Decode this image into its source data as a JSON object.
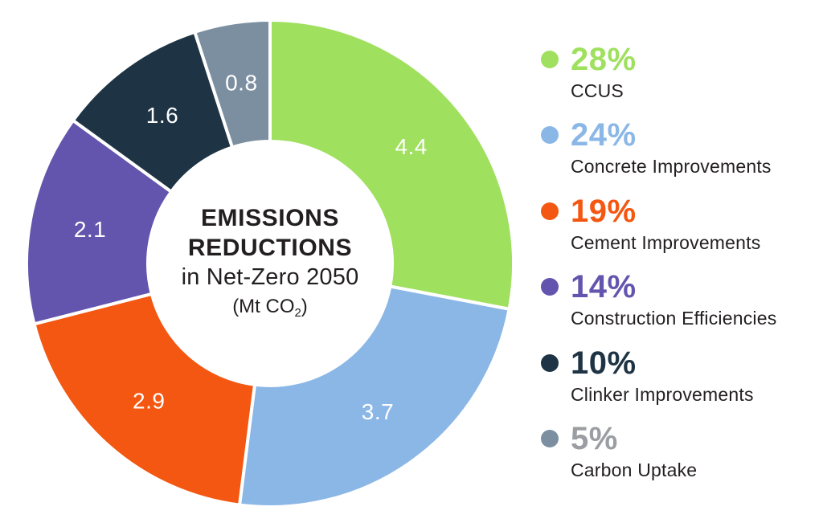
{
  "chart_data": {
    "type": "pie",
    "subtype": "donut",
    "title": "EMISSIONS REDUCTIONS in Net-Zero 2050",
    "unit": "Mt CO2",
    "start_angle_deg": 0,
    "direction": "clockwise",
    "legend_position": "right",
    "value_label_color": "#ffffff",
    "text_color": "#231f20",
    "background_color": "#ffffff",
    "center": {
      "line1": "EMISSIONS",
      "line2": "REDUCTIONS",
      "line3": "in Net-Zero 2050",
      "unit_prefix": "(Mt CO",
      "unit_sub": "2",
      "unit_suffix": ")"
    },
    "segments": [
      {
        "label": "CCUS",
        "pct": 28,
        "pct_label": "28%",
        "value": "4.4",
        "color": "#9fe05f",
        "pct_color": "#9fe05f"
      },
      {
        "label": "Concrete Improvements",
        "pct": 24,
        "pct_label": "24%",
        "value": "3.7",
        "color": "#8bb7e7",
        "pct_color": "#8bb7e7"
      },
      {
        "label": "Cement Improvements",
        "pct": 19,
        "pct_label": "19%",
        "value": "2.9",
        "color": "#f45711",
        "pct_color": "#f45711"
      },
      {
        "label": "Construction Efficiencies",
        "pct": 14,
        "pct_label": "14%",
        "value": "2.1",
        "color": "#6355ae",
        "pct_color": "#6355ae"
      },
      {
        "label": "Clinker Improvements",
        "pct": 10,
        "pct_label": "10%",
        "value": "1.6",
        "color": "#1e3444",
        "pct_color": "#1e3444"
      },
      {
        "label": "Carbon Uptake",
        "pct": 5,
        "pct_label": "5%",
        "value": "0.8",
        "color": "#7c8fa1",
        "pct_color": "#9a9da1"
      }
    ]
  }
}
